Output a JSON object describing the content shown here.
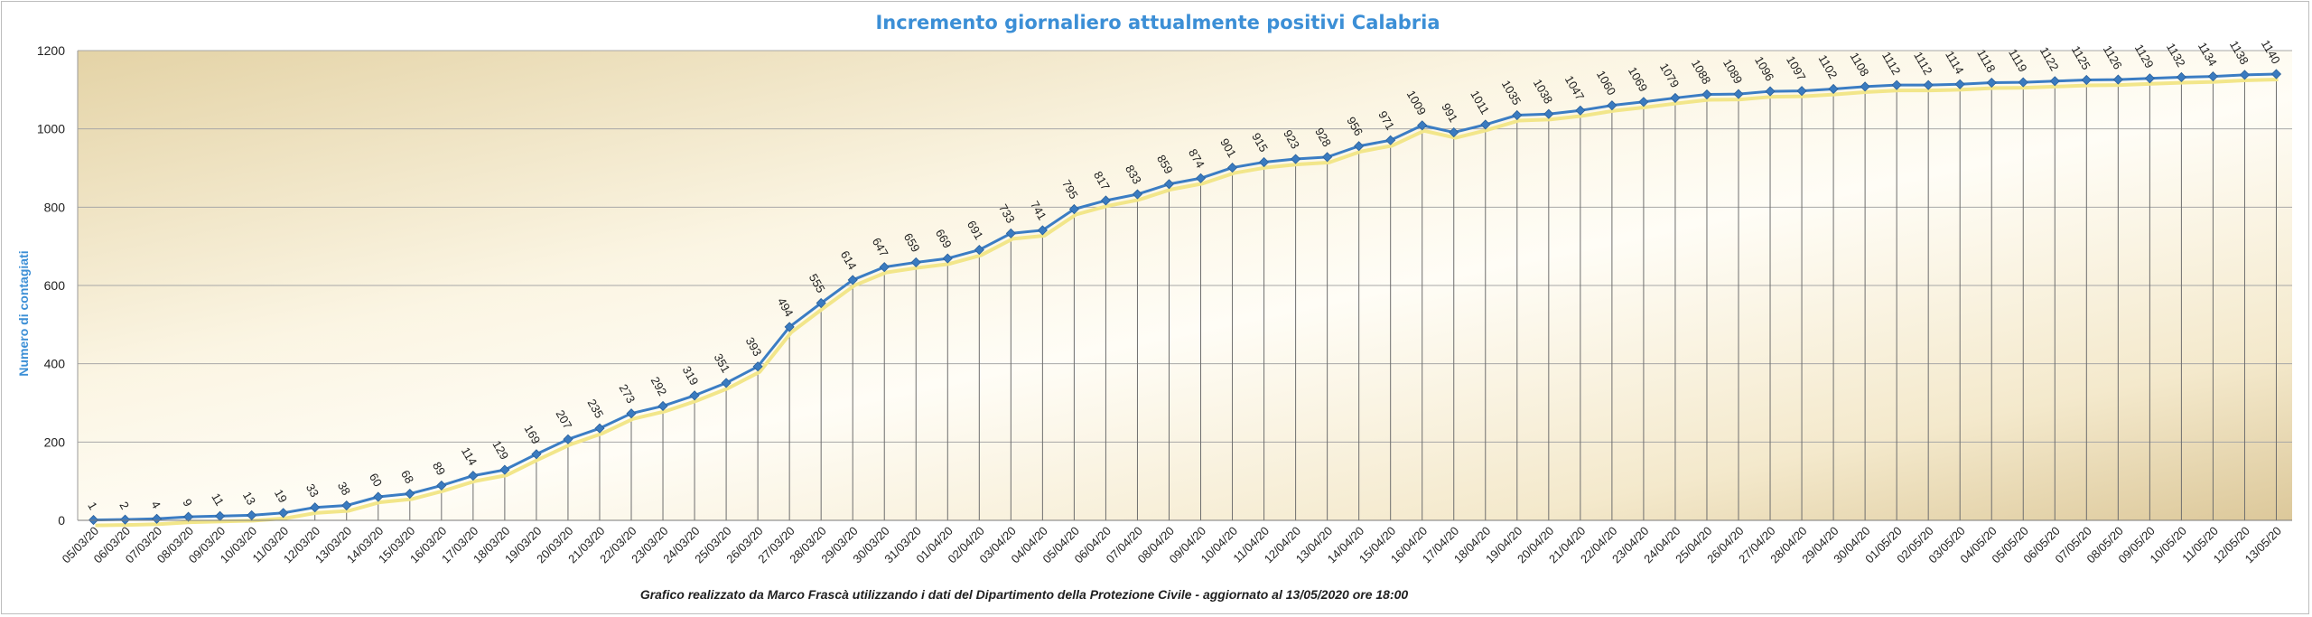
{
  "chart_data": {
    "type": "line",
    "title": "Incremento giornaliero attualmente positivi Calabria",
    "ylabel": "Numero di contagiati",
    "xlabel": "",
    "footnote": "Grafico  realizzato da Marco Frascà  utilizzando i dati del Dipartimento  della Protezione Civile - aggiornato al 13/05/2020 ore 18:00",
    "ylim": [
      0,
      1200
    ],
    "yticks": [
      0,
      200,
      400,
      600,
      800,
      1000,
      1200
    ],
    "grid": true,
    "legend": "none",
    "colors": {
      "line": "#3b7dc4",
      "marker": "#3a7bc0",
      "shadow": "#f2e68a",
      "title": "#3c8fd6",
      "ylabel": "#3c8fd6"
    },
    "categories": [
      "05/03/20",
      "06/03/20",
      "07/03/20",
      "08/03/20",
      "09/03/20",
      "10/03/20",
      "11/03/20",
      "12/03/20",
      "13/03/20",
      "14/03/20",
      "15/03/20",
      "16/03/20",
      "17/03/20",
      "18/03/20",
      "19/03/20",
      "20/03/20",
      "21/03/20",
      "22/03/20",
      "23/03/20",
      "24/03/20",
      "25/03/20",
      "26/03/20",
      "27/03/20",
      "28/03/20",
      "29/03/20",
      "30/03/20",
      "31/03/20",
      "01/04/20",
      "02/04/20",
      "03/04/20",
      "04/04/20",
      "05/04/20",
      "06/04/20",
      "07/04/20",
      "08/04/20",
      "09/04/20",
      "10/04/20",
      "11/04/20",
      "12/04/20",
      "13/04/20",
      "14/04/20",
      "15/04/20",
      "16/04/20",
      "17/04/20",
      "18/04/20",
      "19/04/20",
      "20/04/20",
      "21/04/20",
      "22/04/20",
      "23/04/20",
      "24/04/20",
      "25/04/20",
      "26/04/20",
      "27/04/20",
      "28/04/20",
      "29/04/20",
      "30/04/20",
      "01/05/20",
      "02/05/20",
      "03/05/20",
      "04/05/20",
      "05/05/20",
      "06/05/20",
      "07/05/20",
      "08/05/20",
      "09/05/20",
      "10/05/20",
      "11/05/20",
      "12/05/20",
      "13/05/20"
    ],
    "values": [
      1,
      2,
      4,
      9,
      11,
      13,
      19,
      33,
      38,
      60,
      68,
      89,
      114,
      129,
      169,
      207,
      235,
      273,
      292,
      319,
      351,
      393,
      494,
      555,
      614,
      647,
      659,
      669,
      691,
      733,
      741,
      795,
      817,
      833,
      859,
      874,
      901,
      915,
      923,
      928,
      956,
      971,
      1009,
      991,
      1011,
      1035,
      1038,
      1047,
      1060,
      1069,
      1079,
      1088,
      1089,
      1096,
      1097,
      1102,
      1108,
      1112,
      1112,
      1114,
      1118,
      1119,
      1122,
      1125,
      1126,
      1129,
      1132,
      1134,
      1138,
      1140
    ]
  }
}
